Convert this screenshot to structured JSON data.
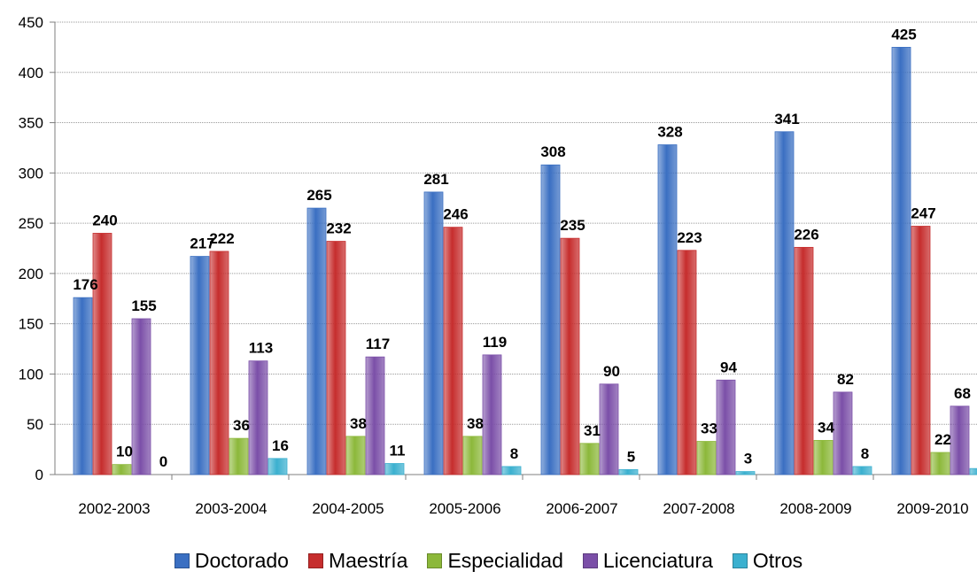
{
  "chart_data": {
    "type": "bar",
    "title": "",
    "xlabel": "",
    "ylabel": "",
    "ylim": [
      0,
      450
    ],
    "yticks": [
      0,
      50,
      100,
      150,
      200,
      250,
      300,
      350,
      400,
      450
    ],
    "grid": true,
    "legend_position": "bottom",
    "categories": [
      "2002-2003",
      "2003-2004",
      "2004-2005",
      "2005-2006",
      "2006-2007",
      "2007-2008",
      "2008-2009",
      "2009-2010"
    ],
    "series": [
      {
        "name": "Doctorado",
        "color": "#3a6fc2",
        "values": [
          176,
          217,
          265,
          281,
          308,
          328,
          341,
          425
        ]
      },
      {
        "name": "Maestría",
        "color": "#c62d2d",
        "values": [
          240,
          222,
          232,
          246,
          235,
          223,
          226,
          247
        ]
      },
      {
        "name": "Especialidad",
        "color": "#8cb83a",
        "values": [
          10,
          36,
          38,
          38,
          31,
          33,
          34,
          22
        ]
      },
      {
        "name": "Licenciatura",
        "color": "#7b4fa8",
        "values": [
          155,
          113,
          117,
          119,
          90,
          94,
          82,
          68
        ]
      },
      {
        "name": "Otros",
        "color": "#3bb0cf",
        "values": [
          0,
          16,
          11,
          8,
          5,
          3,
          8,
          6
        ]
      }
    ]
  }
}
